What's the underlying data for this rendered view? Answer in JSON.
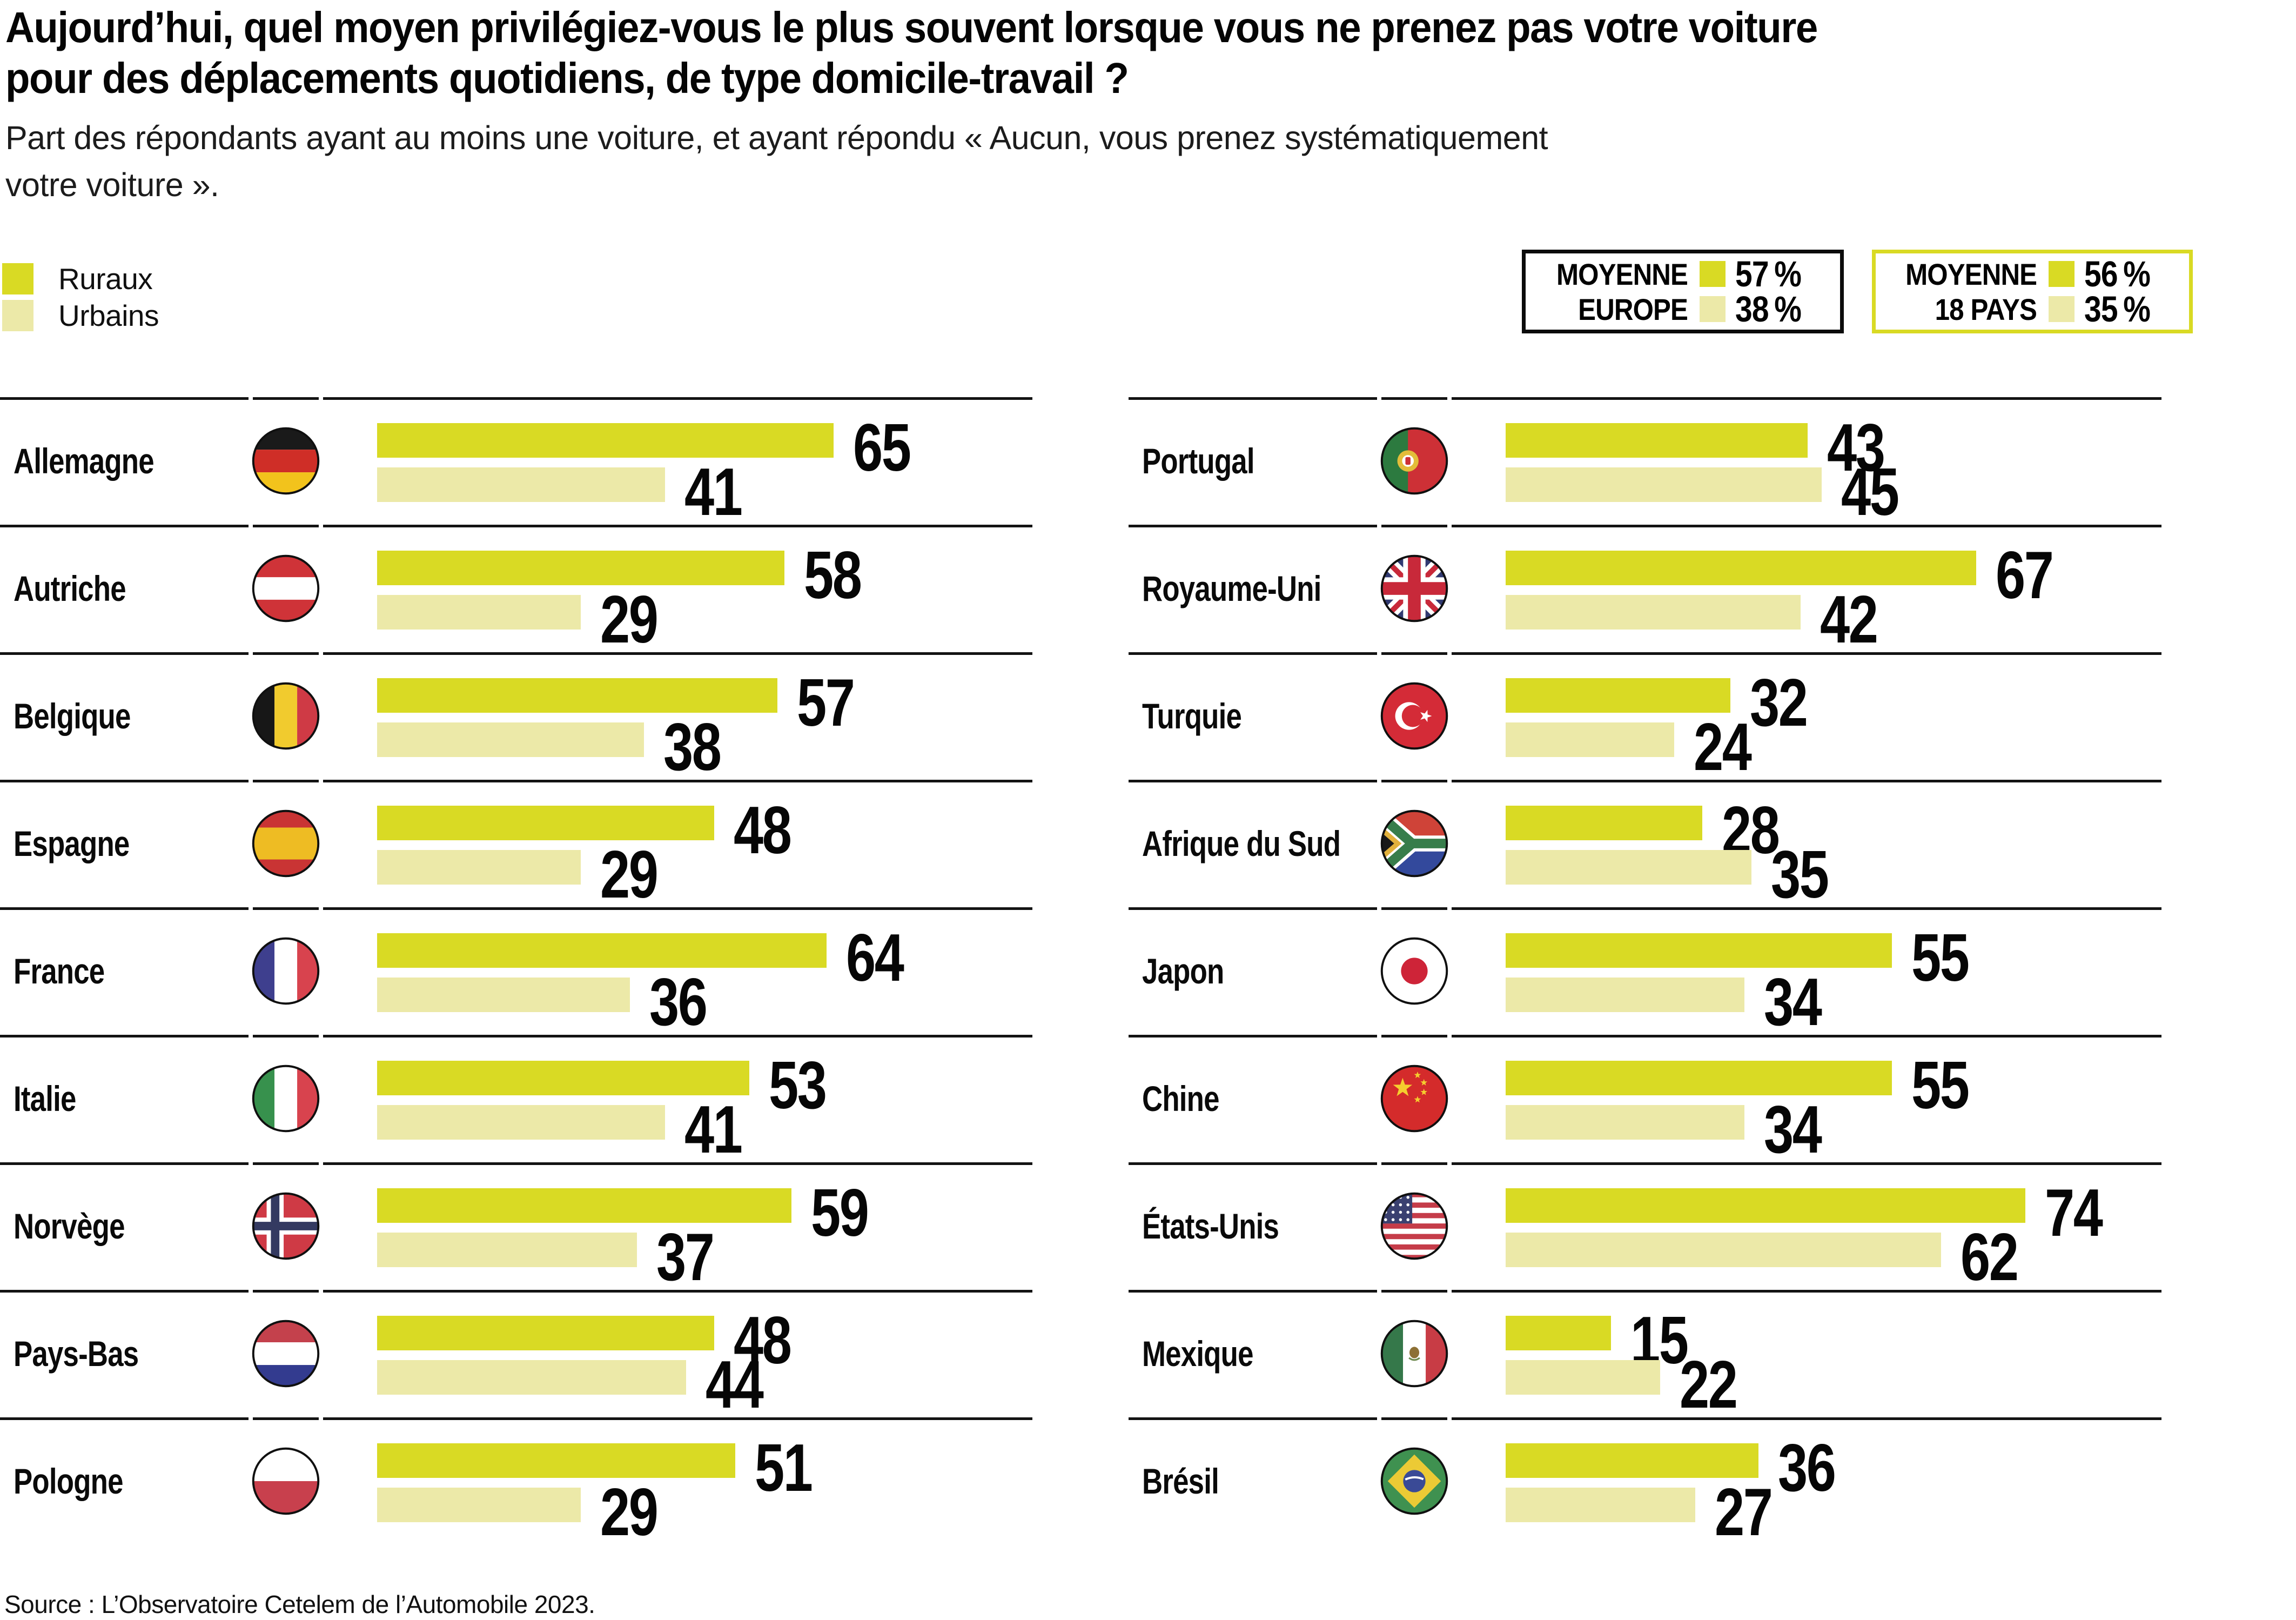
{
  "title_line1": "Aujourd’hui, quel moyen privilégiez-vous le plus souvent lorsque vous ne prenez pas votre voiture",
  "title_line2": "pour des déplacements quotidiens, de type domicile-travail ?",
  "subtitle_line1": "Part des répondants ayant au moins une voiture, et ayant répondu « Aucun, vous prenez systématiquement",
  "subtitle_line2": "votre voiture ».",
  "legend": {
    "rural_label": "Ruraux",
    "urban_label": "Urbains"
  },
  "colors": {
    "rural": "#d9da24",
    "urban": "#ece9a8",
    "separator": "#131313"
  },
  "averages": [
    {
      "label_line1": "MOYENNE",
      "label_line2": "EUROPE",
      "rural_value": "57 %",
      "urban_value": "38 %",
      "border": "black"
    },
    {
      "label_line1": "MOYENNE",
      "label_line2": "18 PAYS",
      "rural_value": "56 %",
      "urban_value": "35 %",
      "border": "yellow-green"
    }
  ],
  "columns": {
    "left": [
      {
        "name": "Allemagne",
        "flag": "de",
        "rural": 65,
        "urban": 41
      },
      {
        "name": "Autriche",
        "flag": "at",
        "rural": 58,
        "urban": 29
      },
      {
        "name": "Belgique",
        "flag": "be",
        "rural": 57,
        "urban": 38
      },
      {
        "name": "Espagne",
        "flag": "es",
        "rural": 48,
        "urban": 29
      },
      {
        "name": "France",
        "flag": "fr",
        "rural": 64,
        "urban": 36
      },
      {
        "name": "Italie",
        "flag": "it",
        "rural": 53,
        "urban": 41
      },
      {
        "name": "Norvège",
        "flag": "no",
        "rural": 59,
        "urban": 37
      },
      {
        "name": "Pays-Bas",
        "flag": "nl",
        "rural": 48,
        "urban": 44
      },
      {
        "name": "Pologne",
        "flag": "pl",
        "rural": 51,
        "urban": 29
      }
    ],
    "right": [
      {
        "name": "Portugal",
        "flag": "pt",
        "rural": 43,
        "urban": 45
      },
      {
        "name": "Royaume-Uni",
        "flag": "gb",
        "rural": 67,
        "urban": 42
      },
      {
        "name": "Turquie",
        "flag": "tr",
        "rural": 32,
        "urban": 24
      },
      {
        "name": "Afrique du Sud",
        "flag": "za",
        "rural": 28,
        "urban": 35
      },
      {
        "name": "Japon",
        "flag": "jp",
        "rural": 55,
        "urban": 34
      },
      {
        "name": "Chine",
        "flag": "cn",
        "rural": 55,
        "urban": 34
      },
      {
        "name": "États-Unis",
        "flag": "us",
        "rural": 74,
        "urban": 62
      },
      {
        "name": "Mexique",
        "flag": "mx",
        "rural": 15,
        "urban": 22
      },
      {
        "name": "Brésil",
        "flag": "br",
        "rural": 36,
        "urban": 27
      }
    ]
  },
  "source": "Source : L’Observatoire Cetelem de l’Automobile 2023.",
  "chart_data": {
    "type": "bar",
    "orientation": "horizontal",
    "unit": "%",
    "title": "Aujourd’hui, quel moyen privilégiez-vous le plus souvent lorsque vous ne prenez pas votre voiture pour des déplacements quotidiens, de type domicile-travail ?",
    "subtitle": "Part des répondants ayant au moins une voiture, et ayant répondu « Aucun, vous prenez systématiquement votre voiture ».",
    "legend_position": "top-left",
    "grid": false,
    "xlim": [
      0,
      80
    ],
    "categories": [
      "Allemagne",
      "Autriche",
      "Belgique",
      "Espagne",
      "France",
      "Italie",
      "Norvège",
      "Pays-Bas",
      "Pologne",
      "Portugal",
      "Royaume-Uni",
      "Turquie",
      "Afrique du Sud",
      "Japon",
      "Chine",
      "États-Unis",
      "Mexique",
      "Brésil"
    ],
    "series": [
      {
        "name": "Ruraux",
        "values": [
          65,
          58,
          57,
          48,
          64,
          53,
          59,
          48,
          51,
          43,
          67,
          32,
          28,
          55,
          55,
          74,
          15,
          36
        ]
      },
      {
        "name": "Urbains",
        "values": [
          41,
          29,
          38,
          29,
          36,
          41,
          37,
          44,
          29,
          45,
          42,
          24,
          35,
          34,
          34,
          62,
          22,
          27
        ]
      }
    ],
    "annotations": [
      {
        "label": "MOYENNE EUROPE",
        "Ruraux": 57,
        "Urbains": 38
      },
      {
        "label": "MOYENNE 18 PAYS",
        "Ruraux": 56,
        "Urbains": 35
      }
    ],
    "source": "Source : L’Observatoire Cetelem de l’Automobile 2023."
  }
}
